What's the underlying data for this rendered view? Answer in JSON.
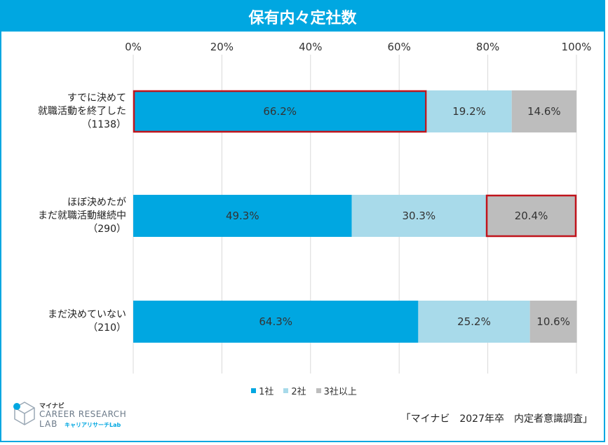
{
  "title": "保有内々定社数",
  "chart_data": {
    "type": "bar",
    "orientation": "horizontal-stacked-100",
    "x_ticks": [
      "0%",
      "20%",
      "40%",
      "60%",
      "80%",
      "100%"
    ],
    "xlim": [
      0,
      100
    ],
    "categories": [
      {
        "lines": [
          "すでに決めて",
          "就職活動を終了した",
          "（1138）"
        ]
      },
      {
        "lines": [
          "ほぼ決めたが",
          "まだ就職活動継続中",
          "（290）"
        ]
      },
      {
        "lines": [
          "まだ決めていない",
          "（210）"
        ]
      }
    ],
    "series": [
      {
        "name": "1社",
        "color": "#00a7e1",
        "values": [
          66.2,
          49.3,
          64.3
        ],
        "labels": [
          "66.2%",
          "49.3%",
          "64.3%"
        ]
      },
      {
        "name": "2社",
        "color": "#a8daea",
        "values": [
          19.2,
          30.3,
          25.2
        ],
        "labels": [
          "19.2%",
          "30.3%",
          "25.2%"
        ]
      },
      {
        "name": "3社以上",
        "color": "#bdbdbd",
        "values": [
          14.6,
          20.4,
          10.6
        ],
        "labels": [
          "14.6%",
          "20.4%",
          "10.6%"
        ]
      }
    ],
    "highlighted": [
      {
        "category_index": 0,
        "series_index": 0
      },
      {
        "category_index": 1,
        "series_index": 2
      }
    ],
    "highlight_color": "#c0141c",
    "legend_position": "bottom",
    "grid": true
  },
  "source": "「マイナビ　2027年卒　内定者意識調査」",
  "logo": {
    "brand": "マイナビ",
    "main": "CAREER RESEARCH",
    "lab": "LAB",
    "kana": "キャリアリサーチLab"
  }
}
